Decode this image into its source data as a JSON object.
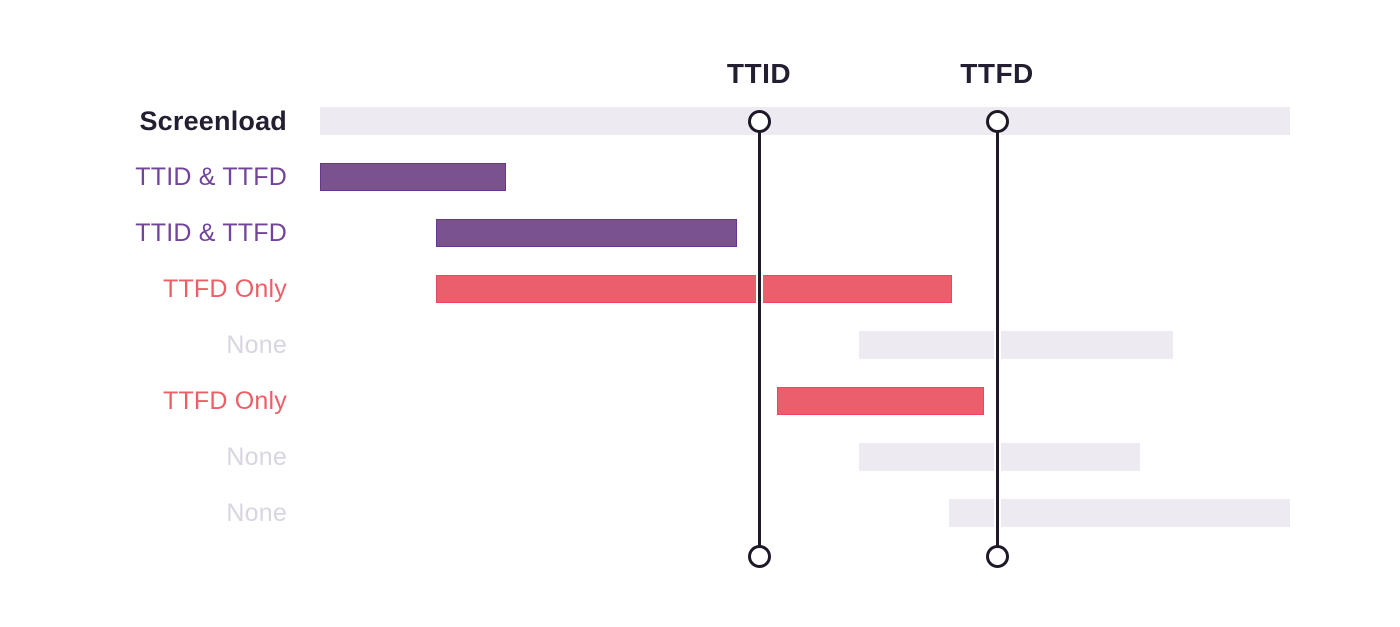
{
  "chart_data": {
    "type": "gantt",
    "title": "",
    "description": "Screenload span timeline showing which child spans contribute to TTID and TTFD",
    "grid": false,
    "legend_position": "left-row-labels",
    "time_axis": {
      "min": 0,
      "max": 100,
      "unit": "relative-percent-of-screenload"
    },
    "markers": [
      {
        "id": "ttid",
        "label": "TTID",
        "time": 45.3
      },
      {
        "id": "ttfd",
        "label": "TTFD",
        "time": 69.8
      }
    ],
    "rows": [
      {
        "label": "Screenload",
        "variant": "screenload",
        "start": 0,
        "end": 100
      },
      {
        "label": "TTID & TTFD",
        "variant": "ttid_ttfd",
        "start": 0,
        "end": 19.2
      },
      {
        "label": "TTID & TTFD",
        "variant": "ttid_ttfd",
        "start": 12.0,
        "end": 43.0
      },
      {
        "label": "TTFD Only",
        "variant": "ttfd_only",
        "start": 12.0,
        "end": 65.2
      },
      {
        "label": "None",
        "variant": "none",
        "start": 55.6,
        "end": 88.0
      },
      {
        "label": "TTFD Only",
        "variant": "ttfd_only",
        "start": 47.1,
        "end": 68.4
      },
      {
        "label": "None",
        "variant": "none",
        "start": 55.6,
        "end": 84.6
      },
      {
        "label": "None",
        "variant": "none",
        "start": 64.8,
        "end": 100
      }
    ],
    "colors": {
      "screenload_bar": "#edeaf2",
      "none_bar": "#edeaf2",
      "ttid_ttfd_bar": "#7a5290",
      "ttid_ttfd_bar_border": "#6a3494",
      "ttfd_only_bar": "#eb5f6c",
      "ttfd_only_bar_border": "#ed4660",
      "marker_line": "#1e1829",
      "marker_label": "#241e31",
      "screenload_label": "#241e31",
      "ttid_ttfd_label": "#71459b",
      "ttfd_only_label": "#ee5e67",
      "none_label": "#d9d5e1"
    }
  }
}
